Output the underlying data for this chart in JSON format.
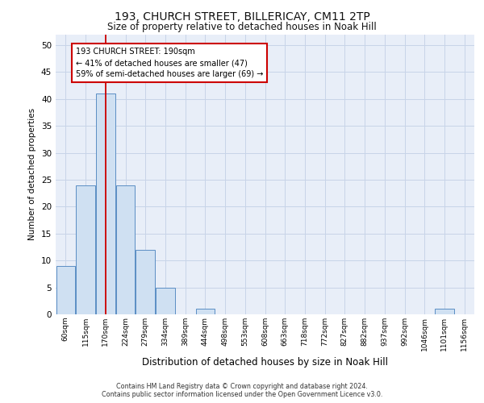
{
  "title1": "193, CHURCH STREET, BILLERICAY, CM11 2TP",
  "title2": "Size of property relative to detached houses in Noak Hill",
  "xlabel": "Distribution of detached houses by size in Noak Hill",
  "ylabel": "Number of detached properties",
  "bin_labels": [
    "60sqm",
    "115sqm",
    "170sqm",
    "224sqm",
    "279sqm",
    "334sqm",
    "389sqm",
    "444sqm",
    "498sqm",
    "553sqm",
    "608sqm",
    "663sqm",
    "718sqm",
    "772sqm",
    "827sqm",
    "882sqm",
    "937sqm",
    "992sqm",
    "1046sqm",
    "1101sqm",
    "1156sqm"
  ],
  "bar_values": [
    9,
    24,
    41,
    24,
    12,
    5,
    0,
    1,
    0,
    0,
    0,
    0,
    0,
    0,
    0,
    0,
    0,
    0,
    0,
    1,
    0
  ],
  "bar_color": "#cfe0f2",
  "bar_edge_color": "#5b8ec4",
  "vline_x": 2,
  "vline_color": "#cc0000",
  "annotation_text": "193 CHURCH STREET: 190sqm\n← 41% of detached houses are smaller (47)\n59% of semi-detached houses are larger (69) →",
  "annotation_box_color": "#ffffff",
  "annotation_box_edge": "#cc0000",
  "ylim": [
    0,
    52
  ],
  "yticks": [
    0,
    5,
    10,
    15,
    20,
    25,
    30,
    35,
    40,
    45,
    50
  ],
  "grid_color": "#c8d4e8",
  "bg_color": "#e8eef8",
  "footer1": "Contains HM Land Registry data © Crown copyright and database right 2024.",
  "footer2": "Contains public sector information licensed under the Open Government Licence v3.0."
}
